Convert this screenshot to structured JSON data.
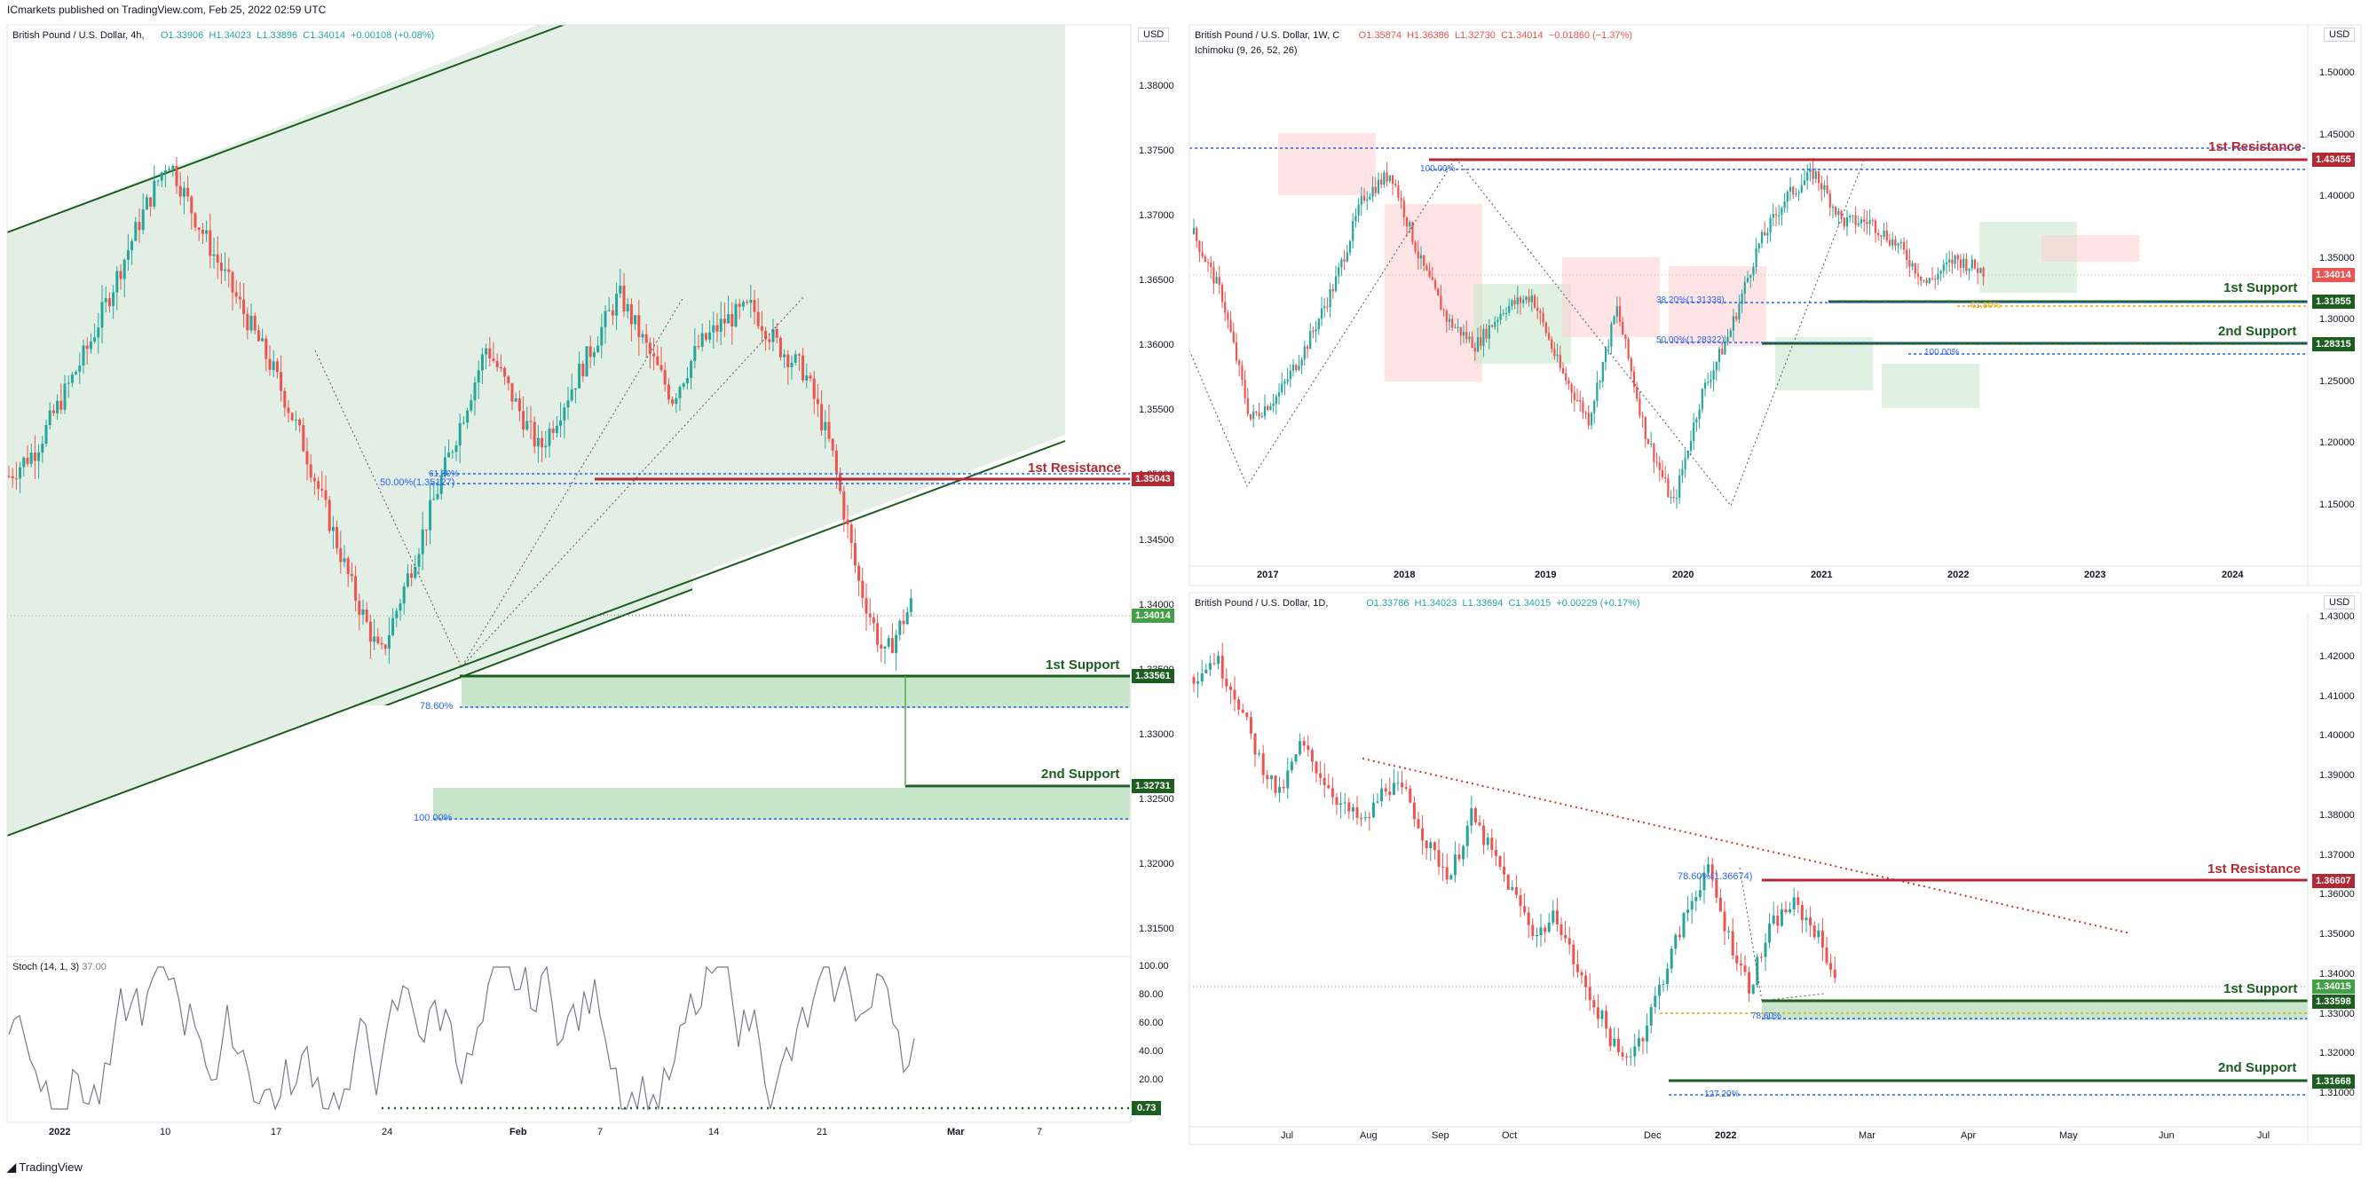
{
  "publish_line": "ICmarkets published on TradingView.com, Feb 25, 2022 02:59 UTC",
  "footer_brand": "TradingView",
  "colors": {
    "up": "#26a69a",
    "down": "#ef5350",
    "resistance": "#b22833",
    "support": "#1b5e20",
    "zone": "#c8e6c9",
    "channel_fill": "#e3efe5",
    "fib": "#2962ff",
    "price_line": "#4caf50"
  },
  "panels": {
    "h4": {
      "title": "British Pound / U.S. Dollar, 4h,",
      "o": "O1.33906",
      "h": "H1.34023",
      "l": "L1.33896",
      "c": "C1.34014",
      "chg": "+0.00108 (+0.08%)",
      "currency": "USD",
      "price_axis": [
        "1.38000",
        "1.37500",
        "1.37000",
        "1.36500",
        "1.36000",
        "1.35500",
        "1.35000",
        "1.34500",
        "1.34000",
        "1.33500",
        "1.33000",
        "1.32500",
        "1.32000",
        "1.31500"
      ],
      "time_axis": [
        "2022",
        "10",
        "17",
        "24",
        "Feb",
        "7",
        "14",
        "21",
        "Mar",
        "7"
      ],
      "resistance_1": {
        "label": "1st Resistance",
        "price": "1.35043"
      },
      "support_1": {
        "label": "1st Support",
        "price": "1.33561"
      },
      "support_2": {
        "label": "2nd Support",
        "price": "1.32731"
      },
      "current_price": "1.34014",
      "fib_labels": {
        "fib_50": "50.00%(1.35127)",
        "fib_618": "61.80%",
        "fib_786": "78.60%",
        "fib_100": "100.00%"
      },
      "stoch": {
        "label": "Stoch (14, 1, 3)",
        "value": "37.00",
        "axis": [
          "100.00",
          "80.00",
          "60.00",
          "40.00",
          "20.00"
        ],
        "last": "0.73"
      }
    },
    "w1": {
      "title": "British Pound / U.S. Dollar, 1W, C",
      "o": "O1.35874",
      "h": "H1.36386",
      "l": "L1.32730",
      "c": "C1.34014",
      "chg": "−0.01860 (−1.37%)",
      "indicator": "Ichimoku (9, 26, 52, 26)",
      "currency": "USD",
      "price_axis": [
        "1.50000",
        "1.45000",
        "1.40000",
        "1.35000",
        "1.30000",
        "1.25000",
        "1.20000",
        "1.15000"
      ],
      "time_axis": [
        "2017",
        "2018",
        "2019",
        "2020",
        "2021",
        "2022",
        "2023",
        "2024"
      ],
      "resistance_1": {
        "label": "1st Resistance",
        "price": "1.43455"
      },
      "support_1": {
        "label": "1st Support",
        "price": "1.31855"
      },
      "support_2": {
        "label": "2nd Support",
        "price": "1.28315"
      },
      "current_price": "1.34014",
      "fib_labels": {
        "fib_100": "100.00%",
        "fib_382": "38.20%(1.31338)",
        "fib_50": "50.00%(1.28322)",
        "fib_618": "61.80%",
        "fib_100b": "100.00%"
      }
    },
    "d1": {
      "title": "British Pound / U.S. Dollar, 1D,",
      "o": "O1.33786",
      "h": "H1.34023",
      "l": "L1.33694",
      "c": "C1.34015",
      "chg": "+0.00229 (+0.17%)",
      "currency": "USD",
      "price_axis": [
        "1.43000",
        "1.42000",
        "1.41000",
        "1.40000",
        "1.39000",
        "1.38000",
        "1.37000",
        "1.36000",
        "1.35000",
        "1.34000",
        "1.33000",
        "1.32000",
        "1.31000"
      ],
      "time_axis": [
        "Jul",
        "Aug",
        "Sep",
        "Oct",
        "Dec",
        "2022",
        "Mar",
        "Apr",
        "May",
        "Jun",
        "Jul"
      ],
      "resistance_1": {
        "label": "1st Resistance",
        "price": "1.36607"
      },
      "support_1": {
        "label": "1st Support",
        "price": "1.33598"
      },
      "support_2": {
        "label": "2nd Support",
        "price": "1.31668"
      },
      "current_price": "1.34015",
      "fib_labels": {
        "fib_786": "78.60%(1.36674)",
        "fib_786b": "78.60%",
        "fib_1272": "127.20%"
      }
    }
  },
  "chart_data": [
    {
      "type": "line",
      "title": "British Pound / U.S. Dollar, 4h",
      "series": [
        {
          "values": [
            1.35,
            1.352,
            1.356,
            1.36,
            1.365,
            1.37,
            1.3745,
            1.37,
            1.366,
            1.362,
            1.358,
            1.353,
            1.347,
            1.341,
            1.336,
            1.342,
            1.348,
            1.354,
            1.36,
            1.356,
            1.352,
            1.356,
            1.36,
            1.364,
            1.36,
            1.356,
            1.36,
            1.362,
            1.363,
            1.36,
            1.358,
            1.352,
            1.342,
            1.336,
            1.3401
          ]
        }
      ],
      "ylim": [
        1.31,
        1.382
      ],
      "annotations": [
        "1st Resistance 1.35043",
        "1st Support 1.33561",
        "2nd Support 1.32731"
      ]
    },
    {
      "type": "line",
      "title": "British Pound / U.S. Dollar, 1W",
      "series": [
        {
          "values": [
            1.37,
            1.32,
            1.22,
            1.24,
            1.28,
            1.33,
            1.4,
            1.42,
            1.35,
            1.3,
            1.28,
            1.31,
            1.32,
            1.26,
            1.22,
            1.31,
            1.21,
            1.15,
            1.24,
            1.29,
            1.36,
            1.4,
            1.42,
            1.38,
            1.38,
            1.36,
            1.33,
            1.35,
            1.34
          ]
        }
      ],
      "ylim": [
        1.13,
        1.53
      ],
      "annotations": [
        "1st Resistance 1.43455",
        "1st Support 1.31855",
        "2nd Support 1.28315"
      ]
    },
    {
      "type": "line",
      "title": "British Pound / U.S. Dollar, 1D",
      "series": [
        {
          "values": [
            1.415,
            1.42,
            1.41,
            1.395,
            1.385,
            1.398,
            1.39,
            1.382,
            1.378,
            1.388,
            1.385,
            1.372,
            1.365,
            1.38,
            1.37,
            1.36,
            1.35,
            1.355,
            1.34,
            1.33,
            1.318,
            1.325,
            1.34,
            1.355,
            1.367,
            1.35,
            1.337,
            1.352,
            1.358,
            1.352,
            1.34
          ]
        }
      ],
      "ylim": [
        1.305,
        1.435
      ],
      "annotations": [
        "1st Resistance 1.36607",
        "1st Support 1.33598",
        "2nd Support 1.31668"
      ]
    }
  ]
}
